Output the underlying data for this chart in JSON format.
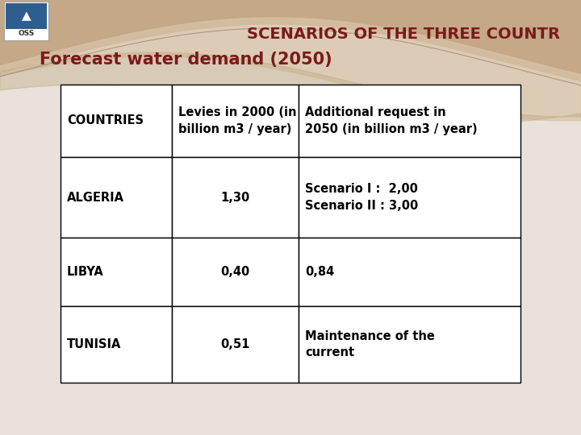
{
  "title": "SCENARIOS OF THE THREE COUNTR",
  "subtitle": "Forecast water demand (2050)",
  "title_color": "#7B1A1A",
  "subtitle_color": "#7B1A1A",
  "bg_color": "#E8E2DA",
  "bg_lower_color": "#DEDAD4",
  "wave_color1": "#C4A888",
  "wave_color2": "#D8C4A8",
  "wave_color3": "#BEA882",
  "table_headers": [
    "COUNTRIES",
    "Levies in 2000 (in\nbillion m3 / year)",
    "Additional request in\n2050 (in billion m3 / year)"
  ],
  "table_rows": [
    [
      "ALGERIA",
      "1,30",
      "Scenario I :  2,00\nScenario II : 3,00"
    ],
    [
      "LIBYA",
      "0,40",
      "0,84"
    ],
    [
      "TUNISIA",
      "0,51",
      "Maintenance of the\ncurrent"
    ]
  ],
  "font_size": 10.5,
  "header_font_size": 10.5,
  "title_fontsize": 14,
  "subtitle_fontsize": 15
}
